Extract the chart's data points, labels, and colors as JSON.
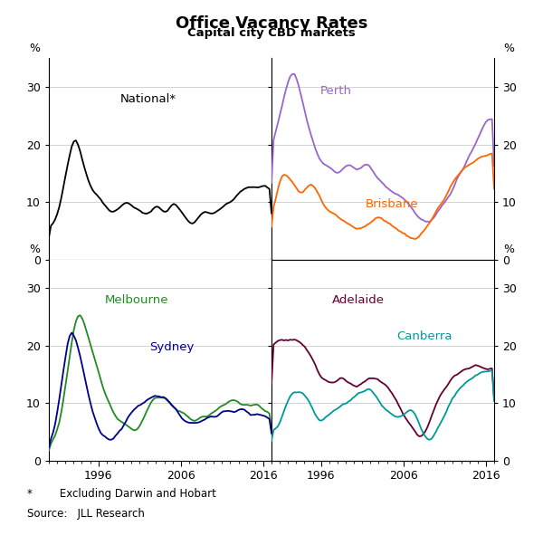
{
  "title": "Office Vacancy Rates",
  "subtitle": "Capital city CBD markets",
  "footnote1": "*        Excluding Darwin and Hobart",
  "footnote2": "Source:   JLL Research",
  "ylim": [
    0,
    35
  ],
  "yticks": [
    0,
    10,
    20,
    30
  ],
  "xlim": [
    1990,
    2017
  ],
  "xticks": [
    1996,
    2006,
    2016
  ],
  "colors": {
    "national": "#000000",
    "perth": "#9966cc",
    "brisbane": "#ff6600",
    "melbourne": "#228B22",
    "sydney": "#00008B",
    "adelaide": "#660033",
    "canberra": "#009999"
  },
  "labels": {
    "national": "National*",
    "perth": "Perth",
    "brisbane": "Brisbane",
    "melbourne": "Melbourne",
    "sydney": "Sydney",
    "adelaide": "Adelaide",
    "canberra": "Canberra"
  }
}
